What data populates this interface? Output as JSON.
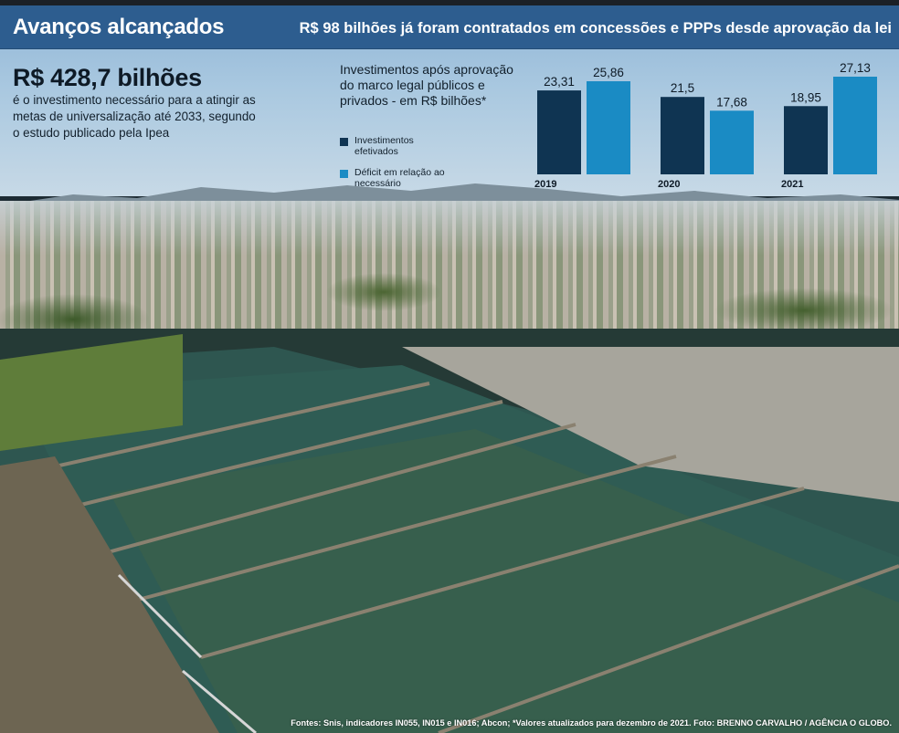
{
  "header": {
    "title": "Avanços alcançados",
    "subtitle": "R$ 98 bilhões já foram contratados em concessões e PPPs desde aprovação da lei"
  },
  "highlight": {
    "value": "R$ 428,7 bilhões",
    "description": "é o investimento necessário para a atingir as metas de universalização até 2033, segundo o estudo publicado pela Ipea"
  },
  "colors": {
    "investimentos": "#0f3452",
    "deficit": "#1a8bc4",
    "header": "#2d5d8f"
  },
  "chart_data": {
    "type": "bar",
    "title": "Investimentos após aprovação do marco legal públicos e privados - em R$ bilhões*",
    "categories": [
      "2019",
      "2020",
      "2021"
    ],
    "series": [
      {
        "name": "Investimentos efetivados",
        "values": [
          23.31,
          21.5,
          18.95
        ],
        "labels": [
          "23,31",
          "21,5",
          "18,95"
        ]
      },
      {
        "name": "Déficit em relação ao necessário",
        "values": [
          25.86,
          17.68,
          27.13
        ],
        "labels": [
          "25,86",
          "17,68",
          "27,13"
        ]
      }
    ],
    "ylim": [
      0,
      27.13
    ],
    "legend_position": "left",
    "grid": false
  },
  "footer": {
    "source": "Fontes: Snis, indicadores IN055, IN015 e IN016; Abcon; *Valores atualizados para dezembro de 2021. Foto: BRENNO CARVALHO / AGÊNCIA O GLOBO."
  }
}
